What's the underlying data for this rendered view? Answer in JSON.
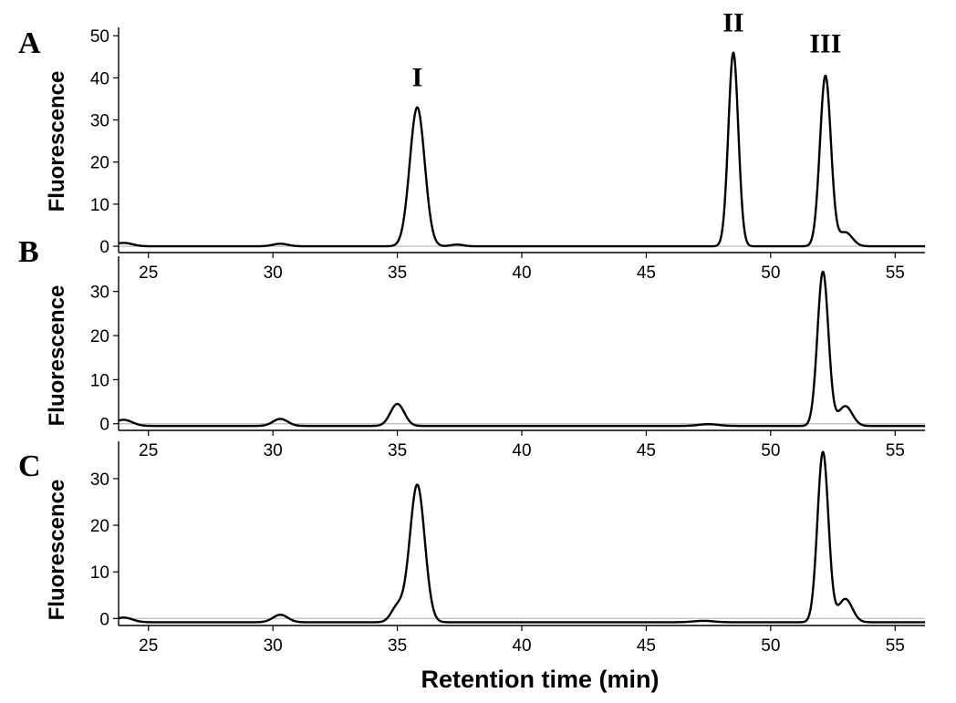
{
  "chart_data": [
    {
      "type": "line",
      "panel_label": "A",
      "ylabel": "Fluorescence",
      "xlim": [
        23.8,
        56.2
      ],
      "ylim": [
        -1.5,
        52
      ],
      "xticks": [
        25,
        30,
        35,
        40,
        45,
        50,
        55
      ],
      "yticks": [
        0,
        10,
        20,
        30,
        40,
        50
      ],
      "baseline": 0,
      "peaks": [
        {
          "x": 24.0,
          "height": 0.8,
          "width": 0.35
        },
        {
          "x": 30.3,
          "height": 0.6,
          "width": 0.3
        },
        {
          "x": 35.8,
          "height": 33.0,
          "width": 0.3
        },
        {
          "x": 37.4,
          "height": 0.4,
          "width": 0.25
        },
        {
          "x": 48.5,
          "height": 46.0,
          "width": 0.2
        },
        {
          "x": 52.2,
          "height": 40.5,
          "width": 0.22
        },
        {
          "x": 53.0,
          "height": 3.3,
          "width": 0.28
        }
      ],
      "annotations": [
        {
          "text": "I",
          "x": 35.8,
          "y": 38
        },
        {
          "text": "II",
          "x": 48.5,
          "y": 51
        },
        {
          "text": "III",
          "x": 52.2,
          "y": 46
        }
      ]
    },
    {
      "type": "line",
      "panel_label": "B",
      "ylabel": "Fluorescence",
      "xlim": [
        23.8,
        56.2
      ],
      "ylim": [
        -1.5,
        38
      ],
      "xticks": [
        25,
        30,
        35,
        40,
        45,
        50,
        55
      ],
      "yticks": [
        0,
        10,
        20,
        30
      ],
      "baseline": -0.5,
      "peaks": [
        {
          "x": 24.0,
          "height": 1.4,
          "width": 0.35
        },
        {
          "x": 30.3,
          "height": 1.6,
          "width": 0.3
        },
        {
          "x": 35.0,
          "height": 5.0,
          "width": 0.28
        },
        {
          "x": 47.5,
          "height": 0.4,
          "width": 0.4
        },
        {
          "x": 52.1,
          "height": 35.0,
          "width": 0.22
        },
        {
          "x": 53.0,
          "height": 4.5,
          "width": 0.28
        }
      ]
    },
    {
      "type": "line",
      "panel_label": "C",
      "ylabel": "Fluorescence",
      "xlim": [
        23.8,
        56.2
      ],
      "ylim": [
        -1.5,
        38
      ],
      "xticks": [
        25,
        30,
        35,
        40,
        45,
        50,
        55
      ],
      "yticks": [
        0,
        10,
        20,
        30
      ],
      "xlabel": "Retention time (min)",
      "baseline": -0.8,
      "peaks": [
        {
          "x": 24.0,
          "height": 1.0,
          "width": 0.35
        },
        {
          "x": 30.3,
          "height": 1.6,
          "width": 0.3
        },
        {
          "x": 35.0,
          "height": 3.3,
          "width": 0.25
        },
        {
          "x": 35.8,
          "height": 29.5,
          "width": 0.3
        },
        {
          "x": 47.3,
          "height": 0.3,
          "width": 0.4
        },
        {
          "x": 52.1,
          "height": 36.5,
          "width": 0.22
        },
        {
          "x": 53.0,
          "height": 5.0,
          "width": 0.28
        }
      ]
    }
  ]
}
